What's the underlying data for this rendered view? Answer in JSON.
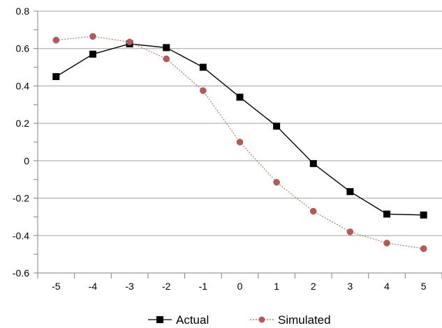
{
  "chart_data": {
    "type": "line",
    "x": [
      -5,
      -4,
      -3,
      -2,
      -1,
      0,
      1,
      2,
      3,
      4,
      5
    ],
    "series": [
      {
        "name": "Actual",
        "color": "#000000",
        "marker": "square",
        "line_style": "solid",
        "values": [
          0.45,
          0.57,
          0.625,
          0.605,
          0.5,
          0.34,
          0.185,
          -0.015,
          -0.165,
          -0.285,
          -0.29
        ]
      },
      {
        "name": "Simulated",
        "color": "#b55a5a",
        "marker": "circle",
        "line_style": "dotted",
        "values": [
          0.645,
          0.665,
          0.635,
          0.545,
          0.375,
          0.1,
          -0.115,
          -0.27,
          -0.38,
          -0.44,
          -0.47
        ]
      }
    ],
    "title": "",
    "xlabel": "",
    "ylabel": "",
    "ylim": [
      -0.6,
      0.8
    ],
    "xlim": [
      -5.5,
      5.5
    ],
    "y_ticks": [
      0.8,
      0.6,
      0.4,
      0.2,
      0,
      -0.2,
      -0.4,
      -0.6
    ],
    "y_tick_labels": [
      "0.8",
      "0.6",
      "0.4",
      "0.2",
      "0",
      "-0.2",
      "-0.4",
      "-0.6"
    ],
    "x_tick_labels": [
      "-5",
      "-4",
      "-3",
      "-2",
      "-1",
      "0",
      "1",
      "2",
      "3",
      "4",
      "5"
    ],
    "grid": "horizontal",
    "legend_position": "bottom"
  }
}
